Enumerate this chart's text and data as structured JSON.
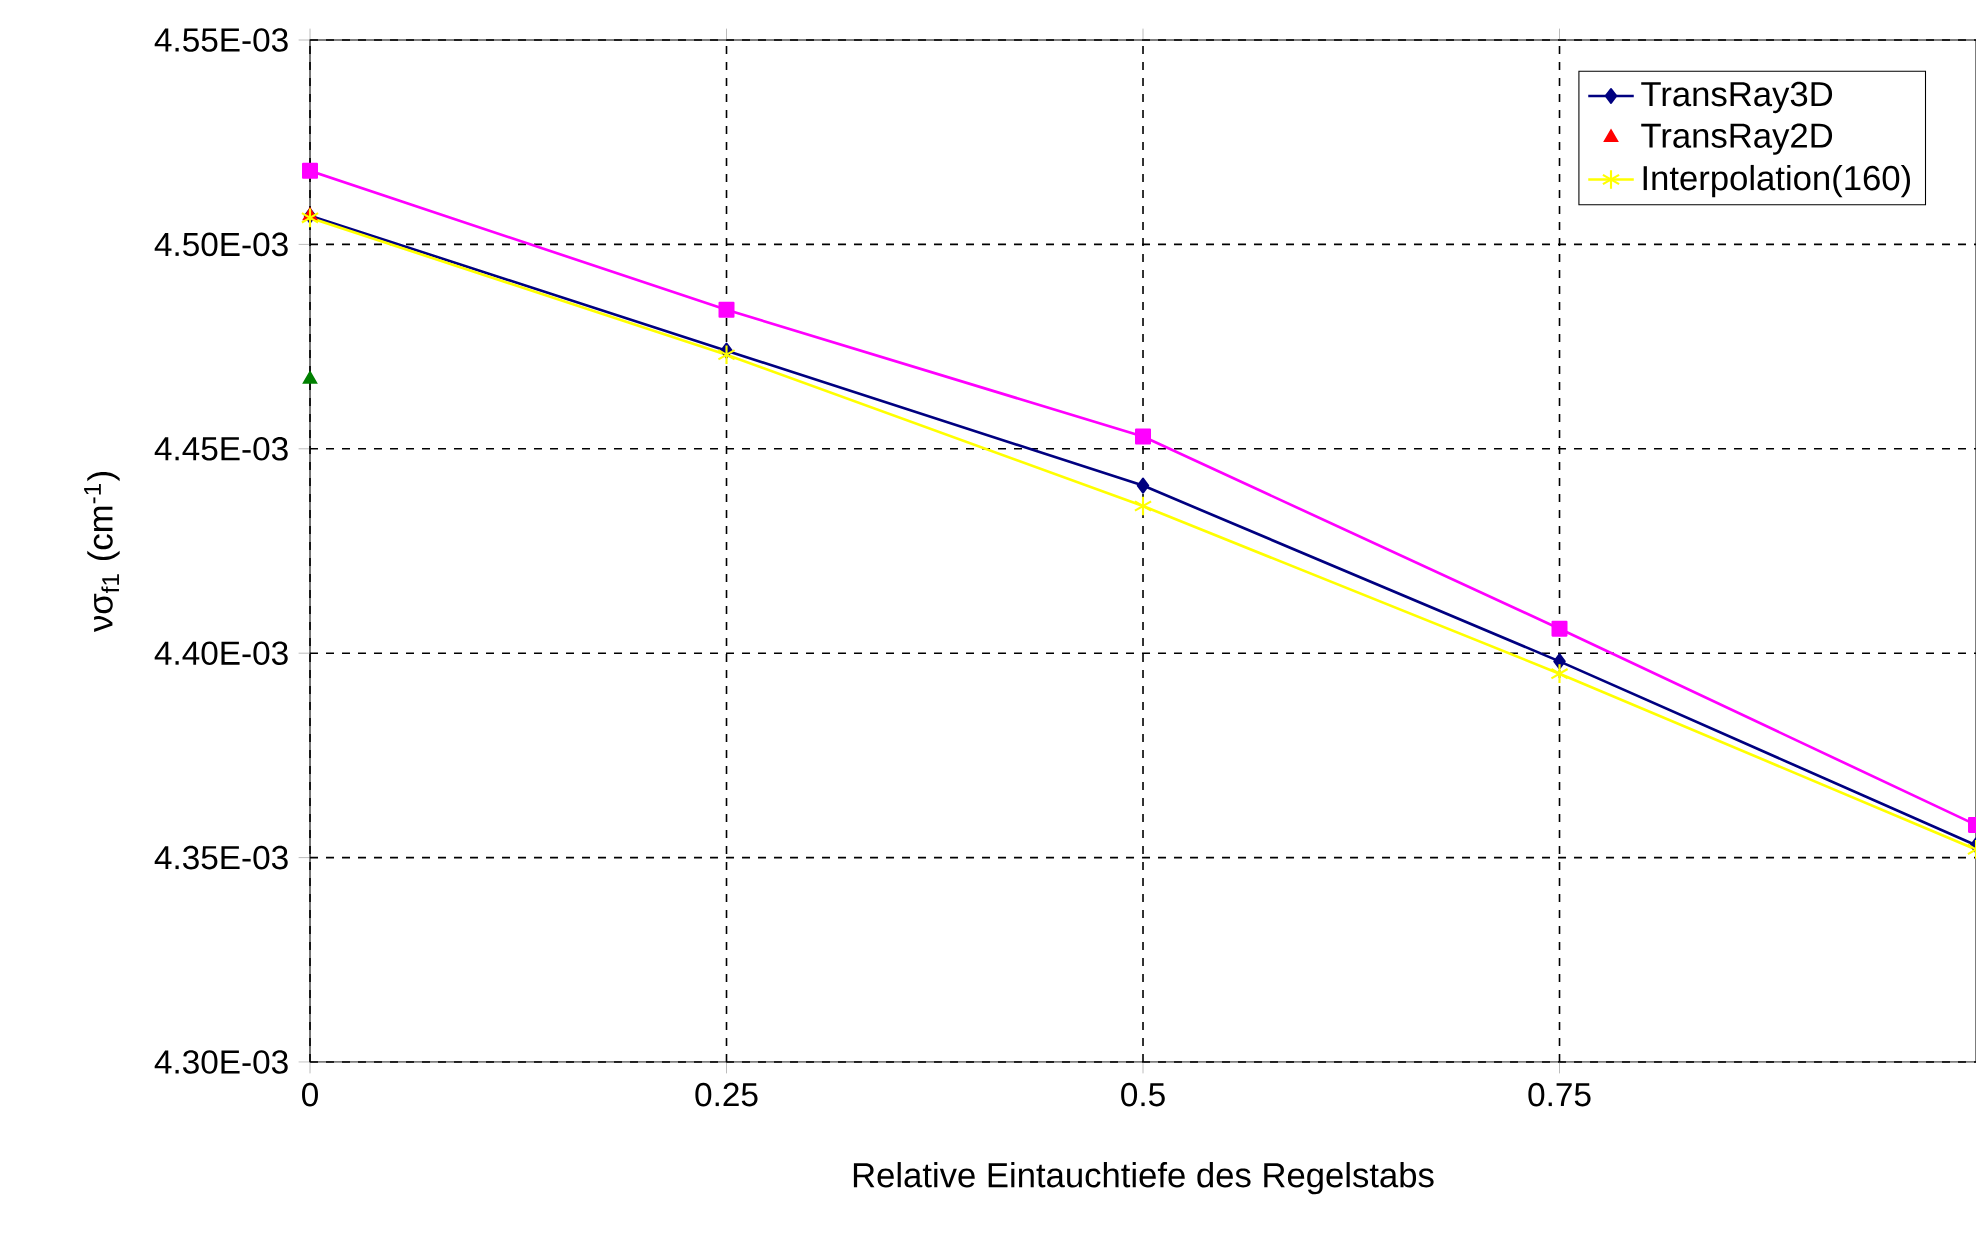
{
  "chart_data": {
    "type": "line",
    "xlabel": "Relative Eintauchtiefe des Regelstabs",
    "ylabel": "νσ$_{f1}$ (cm$^{-1}$)",
    "xlim": [
      0,
      1
    ],
    "xticks": [
      0,
      0.25,
      0.5,
      0.75
    ],
    "ylim": [
      0.0043,
      0.00455
    ],
    "yticks": [
      {
        "value": 0.0043,
        "label": "4.30E-03"
      },
      {
        "value": 0.00435,
        "label": "4.35E-03"
      },
      {
        "value": 0.0044,
        "label": "4.40E-03"
      },
      {
        "value": 0.00445,
        "label": "4.45E-03"
      },
      {
        "value": 0.0045,
        "label": "4.50E-03"
      },
      {
        "value": 0.00455,
        "label": "4.55E-03"
      }
    ],
    "grid": true,
    "legend": "top right",
    "series": [
      {
        "name": "TransRay3D",
        "marker": "diamond",
        "color": "#000080",
        "x": [
          0,
          0.25,
          0.5,
          0.75,
          1
        ],
        "values": [
          0.004507,
          0.004474,
          0.004441,
          0.004398,
          0.004353
        ]
      },
      {
        "marker": "square",
        "color": "#ff00ff",
        "x": [
          0,
          0.25,
          0.5,
          0.75,
          1
        ],
        "values": [
          0.004518,
          0.004484,
          0.004453,
          0.004406,
          0.004358
        ]
      },
      {
        "type": "scatter",
        "marker": "triangle",
        "color": "#008000",
        "x": [
          0
        ],
        "values": [
          0.004467
        ]
      },
      {
        "name": "TransRay2D",
        "type": "scatter",
        "marker": "triangle",
        "color": "#ff0000",
        "x": [
          0
        ],
        "values": [
          0.004507
        ]
      },
      {
        "name": "Interpolation(160)",
        "marker": "cross",
        "color": "#ffff00",
        "x": [
          0,
          0.25,
          0.5,
          0.75,
          1
        ],
        "values": [
          0.0045065,
          0.004473,
          0.004436,
          0.004395,
          0.004352
        ]
      }
    ]
  }
}
